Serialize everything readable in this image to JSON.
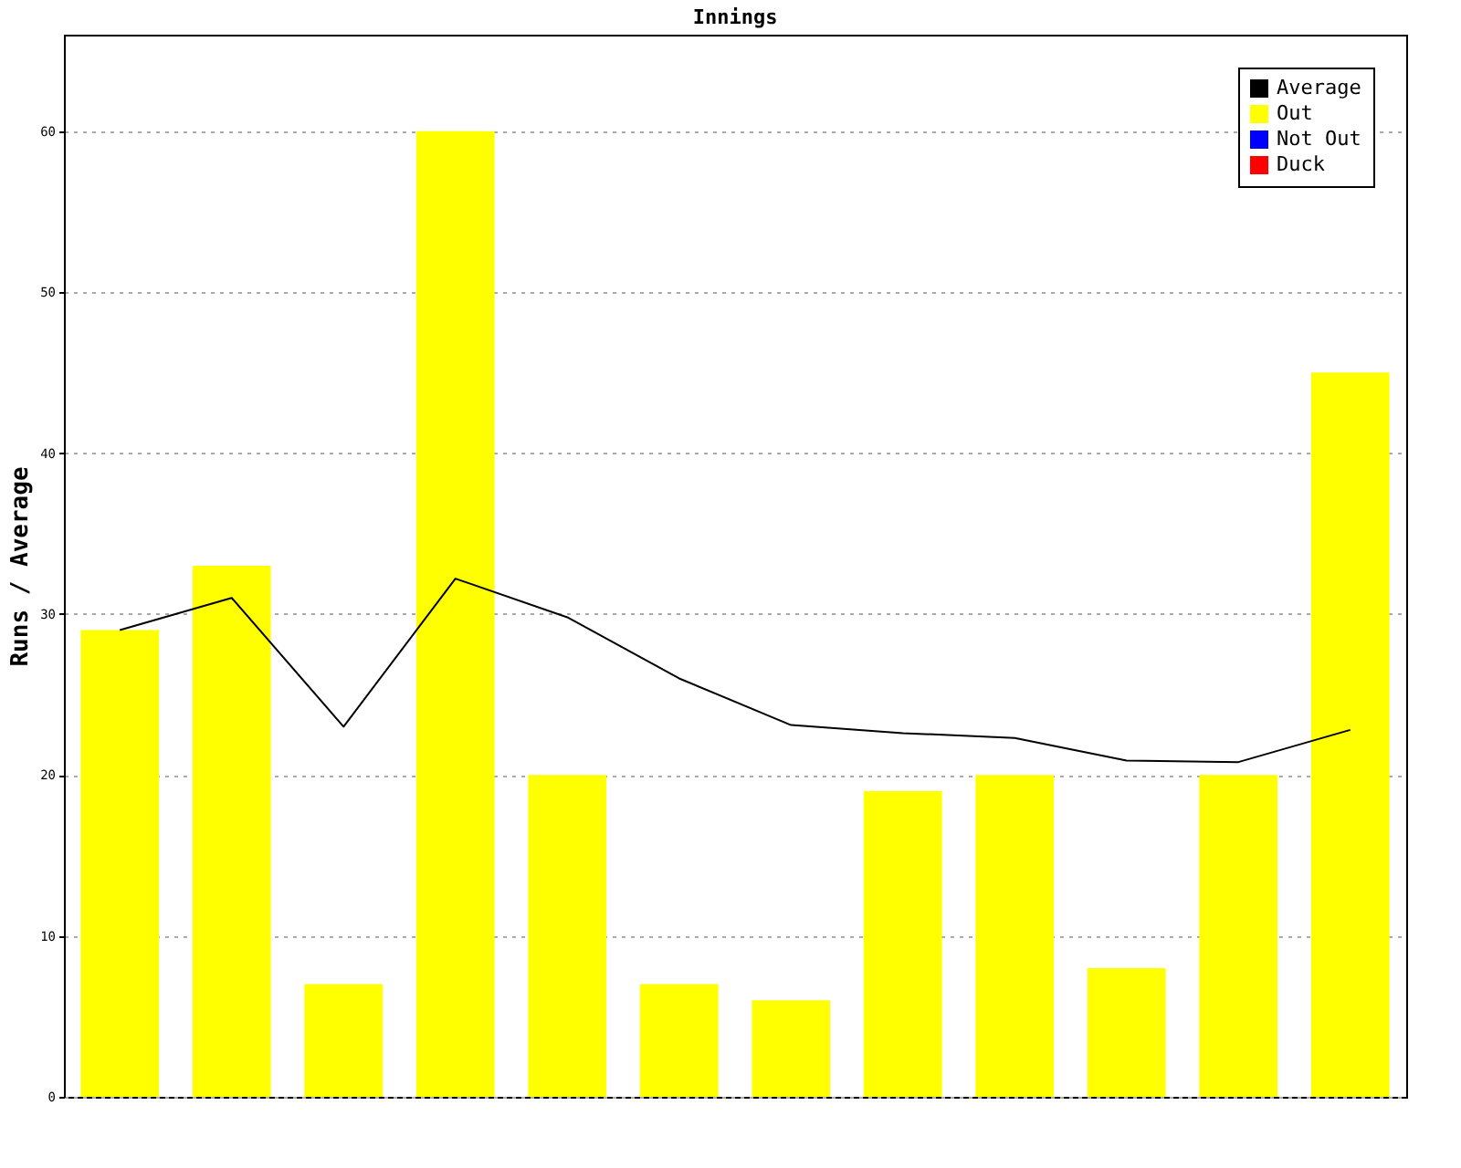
{
  "chart_data": {
    "type": "bar",
    "title": "Innings",
    "ylabel": "Runs / Average",
    "categories": [
      null,
      null,
      null,
      null,
      null,
      null,
      null,
      null,
      null,
      null,
      null,
      null
    ],
    "series": [
      {
        "name": "Average",
        "type": "line",
        "color": "#000000",
        "values": [
          29,
          31,
          23,
          32.2,
          29.8,
          26,
          23.1,
          22.6,
          22.3,
          20.9,
          20.8,
          22.8
        ]
      },
      {
        "name": "Out",
        "color": "#ffff00",
        "values": [
          29,
          33,
          7,
          60,
          20,
          7,
          6,
          19,
          20,
          8,
          20,
          45
        ]
      },
      {
        "name": "Not Out",
        "color": "#0000ff",
        "values": [
          null,
          null,
          null,
          null,
          null,
          null,
          null,
          null,
          null,
          null,
          null,
          null
        ]
      },
      {
        "name": "Duck",
        "color": "#ff0000",
        "values": [
          null,
          null,
          null,
          null,
          null,
          null,
          null,
          null,
          null,
          null,
          null,
          null
        ]
      }
    ],
    "ylim": [
      0,
      66
    ],
    "yticks": [
      0,
      10,
      20,
      30,
      40,
      50,
      60
    ],
    "grid": "y",
    "legend": "top right",
    "tick_labels": "y"
  }
}
